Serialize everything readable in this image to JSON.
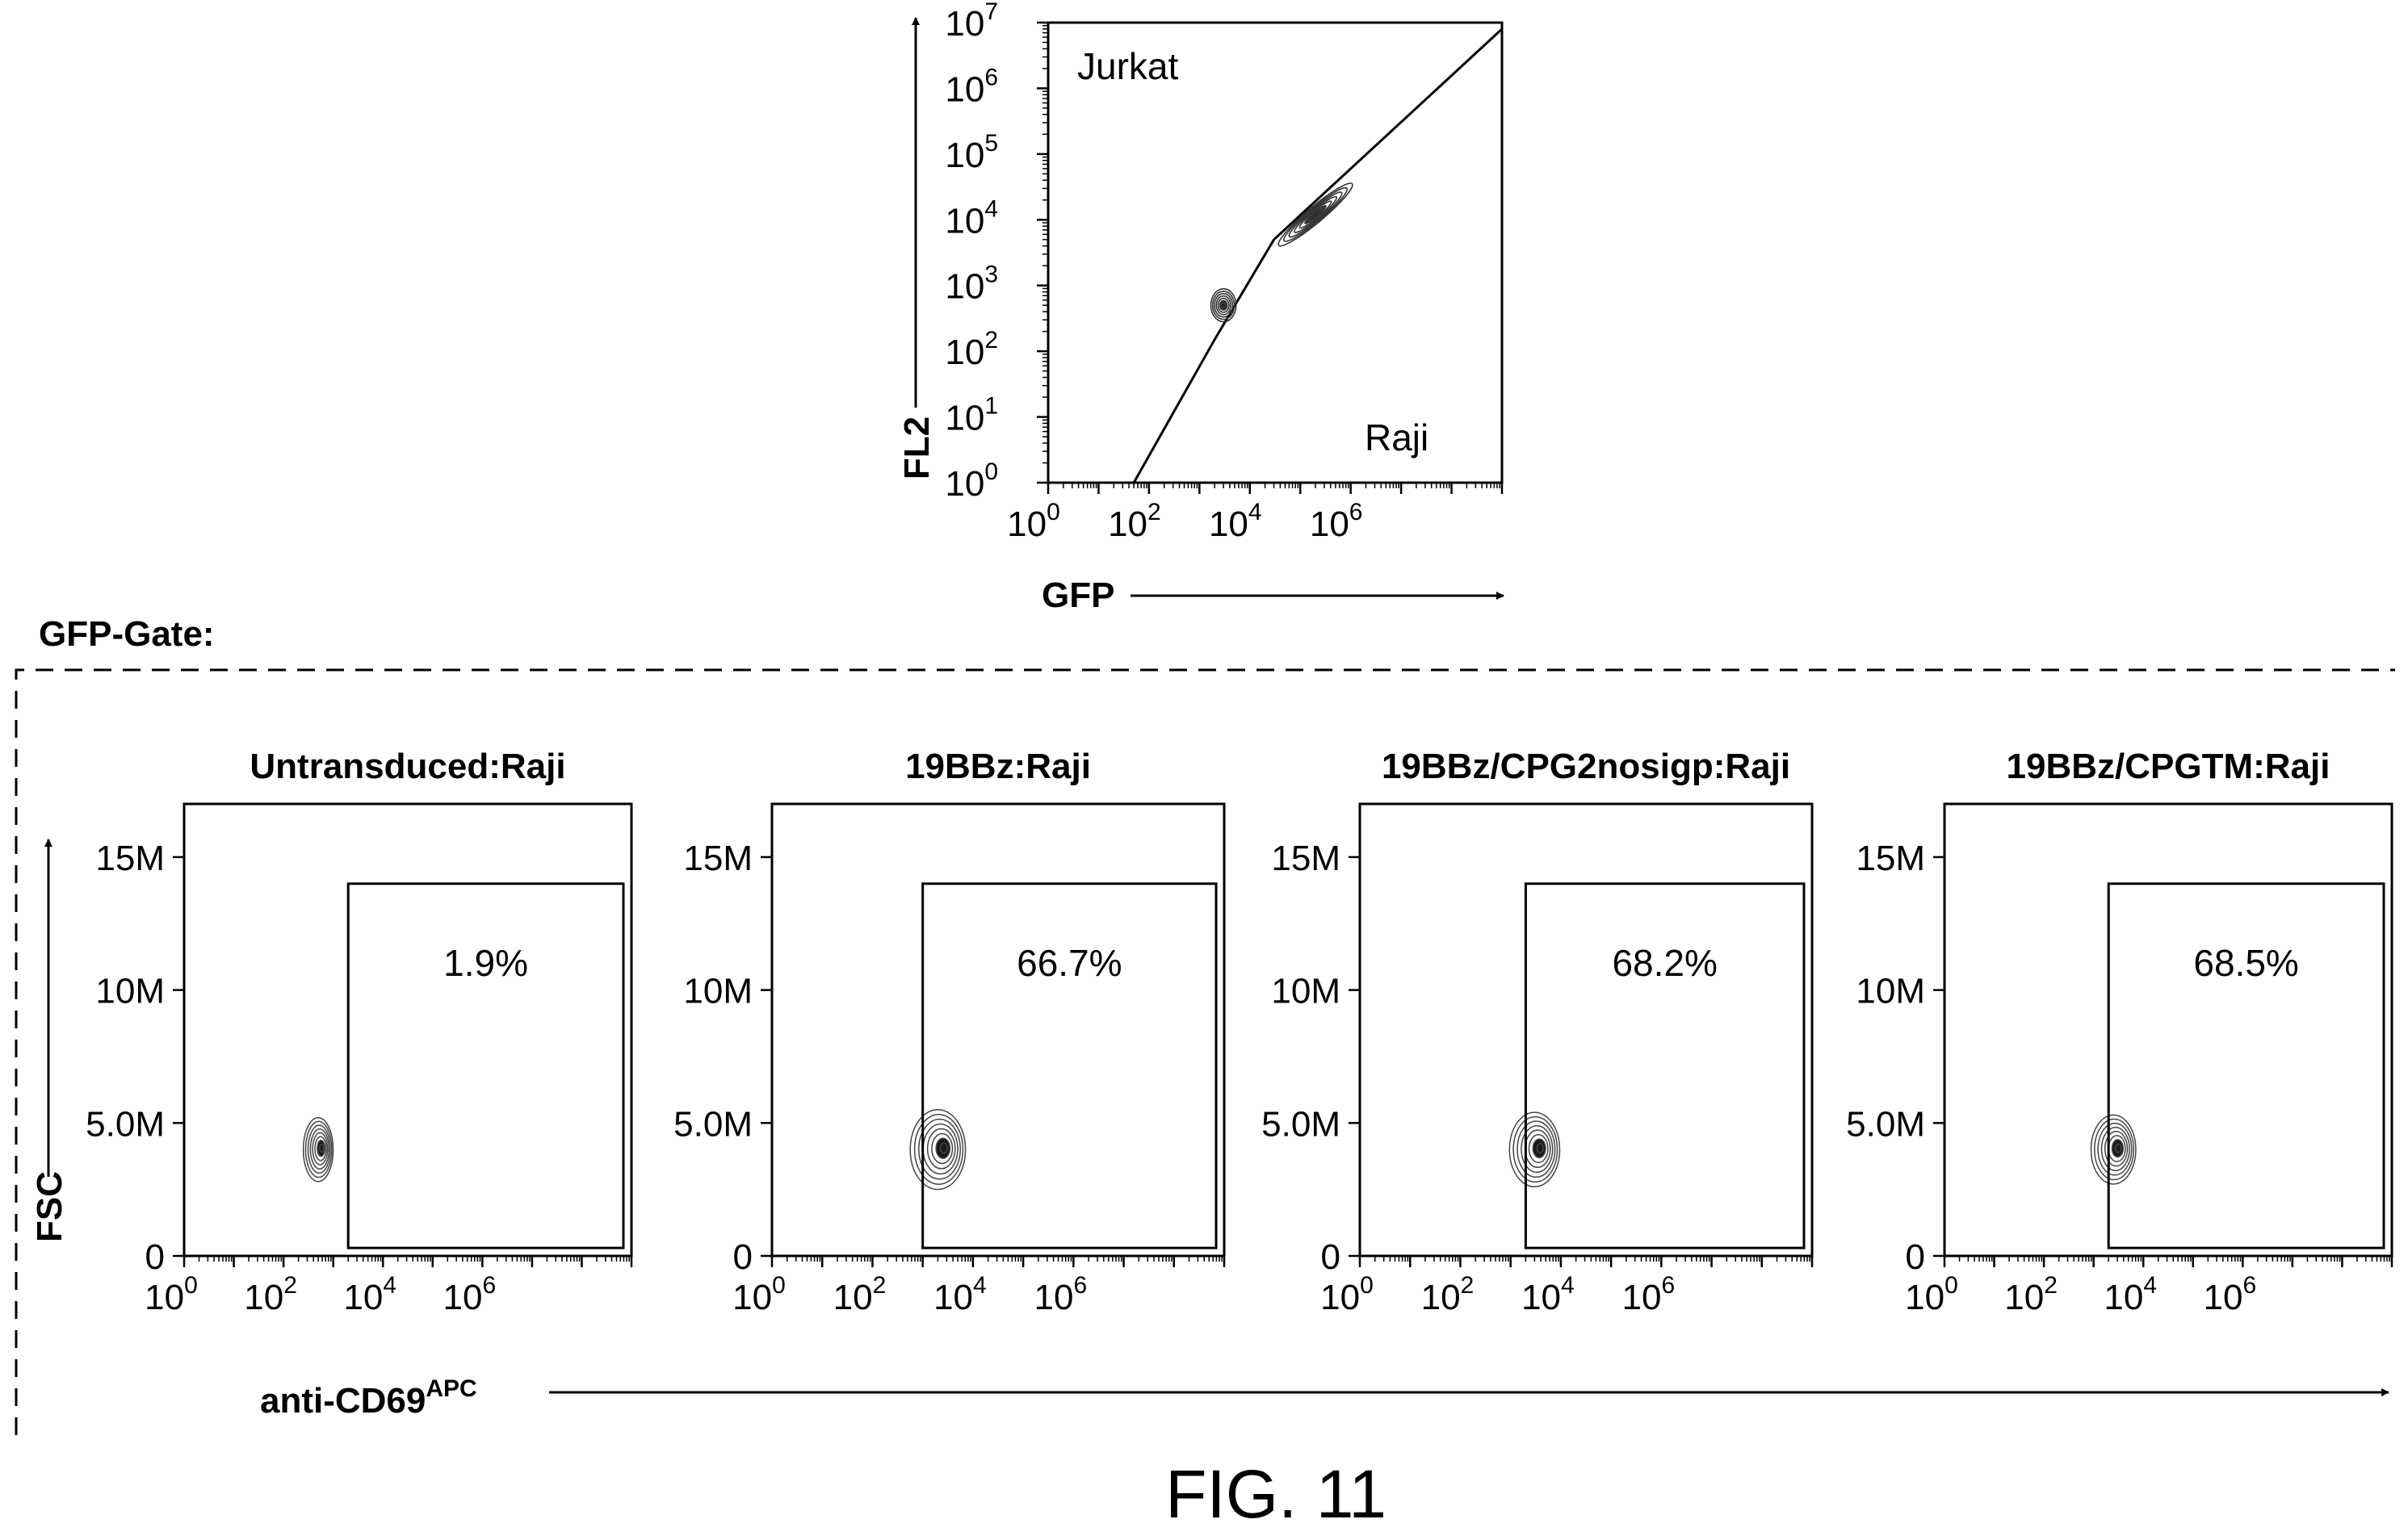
{
  "figure_label": "FIG. 11",
  "gate_label": "GFP-Gate:",
  "bottom_xlabel": "anti-CD69",
  "bottom_xlabel_sup": "APC",
  "bottom_ylabel": "FSC",
  "colors": {
    "ink": "#000000",
    "density": "#333333",
    "background": "#ffffff"
  },
  "chart_data": [
    {
      "type": "scatter",
      "subtype": "flow-cytometry-density",
      "title": "",
      "xlabel": "GFP",
      "ylabel": "FL2",
      "xscale": "log",
      "yscale": "log",
      "xlim": [
        1,
        1000000000
      ],
      "ylim": [
        1,
        10000000
      ],
      "x_ticks": [
        {
          "base": "10",
          "exp": "0",
          "value": 1
        },
        {
          "base": "10",
          "exp": "2",
          "value": 100
        },
        {
          "base": "10",
          "exp": "4",
          "value": 10000
        },
        {
          "base": "10",
          "exp": "6",
          "value": 1000000
        }
      ],
      "y_ticks": [
        {
          "base": "10",
          "exp": "0",
          "value": 1
        },
        {
          "base": "10",
          "exp": "1",
          "value": 10
        },
        {
          "base": "10",
          "exp": "2",
          "value": 100
        },
        {
          "base": "10",
          "exp": "3",
          "value": 1000
        },
        {
          "base": "10",
          "exp": "4",
          "value": 10000
        },
        {
          "base": "10",
          "exp": "5",
          "value": 100000
        },
        {
          "base": "10",
          "exp": "6",
          "value": 1000000
        },
        {
          "base": "10",
          "exp": "7",
          "value": 10000000
        }
      ],
      "region_labels": [
        {
          "text": "Jurkat",
          "x": 3,
          "y": 3000000
        },
        {
          "text": "Raji",
          "x": 2000000,
          "y": 8
        }
      ],
      "gate_line": [
        [
          50,
          1
        ],
        [
          2000,
          150
        ],
        [
          30000,
          5000
        ],
        [
          1000000000,
          8000000
        ]
      ],
      "populations": [
        {
          "x": 3000,
          "y": 500,
          "log_spread_x": 0.25,
          "log_spread_y": 0.25,
          "tilt_deg": 0
        },
        {
          "x": 200000,
          "y": 12000,
          "log_spread_x": 0.95,
          "log_spread_y": 0.12,
          "tilt_deg": 40
        }
      ]
    },
    {
      "type": "scatter",
      "subtype": "flow-cytometry-density",
      "title": "Untransduced:Raji",
      "xscale": "log",
      "xlim": [
        1,
        1000000000
      ],
      "ylim": [
        0,
        17000000
      ],
      "x_ticks": [
        {
          "base": "10",
          "exp": "0",
          "value": 1
        },
        {
          "base": "10",
          "exp": "2",
          "value": 100
        },
        {
          "base": "10",
          "exp": "4",
          "value": 10000
        },
        {
          "base": "10",
          "exp": "6",
          "value": 1000000
        }
      ],
      "y_ticks": [
        {
          "label": "0",
          "value": 0
        },
        {
          "label": "5.0M",
          "value": 5000000
        },
        {
          "label": "10M",
          "value": 10000000
        },
        {
          "label": "15M",
          "value": 15000000
        }
      ],
      "gate": {
        "x_min": 2000,
        "x_max": 1000000000,
        "y_min": 300000,
        "y_max": 14000000
      },
      "gate_percent": "1.9%",
      "population": {
        "x": 500,
        "y": 4000000,
        "log_spread_x": 0.3,
        "y_spread": 1200000
      }
    },
    {
      "type": "scatter",
      "subtype": "flow-cytometry-density",
      "title": "19BBz:Raji",
      "xscale": "log",
      "xlim": [
        1,
        1000000000
      ],
      "ylim": [
        0,
        17000000
      ],
      "x_ticks": [
        {
          "base": "10",
          "exp": "0",
          "value": 1
        },
        {
          "base": "10",
          "exp": "2",
          "value": 100
        },
        {
          "base": "10",
          "exp": "4",
          "value": 10000
        },
        {
          "base": "10",
          "exp": "6",
          "value": 1000000
        }
      ],
      "y_ticks": [
        {
          "label": "0",
          "value": 0
        },
        {
          "label": "5.0M",
          "value": 5000000
        },
        {
          "label": "10M",
          "value": 10000000
        },
        {
          "label": "15M",
          "value": 15000000
        }
      ],
      "gate": {
        "x_min": 1000,
        "x_max": 1000000000,
        "y_min": 300000,
        "y_max": 14000000
      },
      "gate_percent": "66.7%",
      "population": {
        "x": 2000,
        "y": 4000000,
        "log_spread_x": 0.55,
        "y_spread": 1500000
      }
    },
    {
      "type": "scatter",
      "subtype": "flow-cytometry-density",
      "title": "19BBz/CPG2nosigp:Raji",
      "xscale": "log",
      "xlim": [
        1,
        1000000000
      ],
      "ylim": [
        0,
        17000000
      ],
      "x_ticks": [
        {
          "base": "10",
          "exp": "0",
          "value": 1
        },
        {
          "base": "10",
          "exp": "2",
          "value": 100
        },
        {
          "base": "10",
          "exp": "4",
          "value": 10000
        },
        {
          "base": "10",
          "exp": "6",
          "value": 1000000
        }
      ],
      "y_ticks": [
        {
          "label": "0",
          "value": 0
        },
        {
          "label": "5.0M",
          "value": 5000000
        },
        {
          "label": "10M",
          "value": 10000000
        },
        {
          "label": "15M",
          "value": 15000000
        }
      ],
      "gate": {
        "x_min": 2000,
        "x_max": 1000000000,
        "y_min": 300000,
        "y_max": 14000000
      },
      "gate_percent": "68.2%",
      "population": {
        "x": 3000,
        "y": 4000000,
        "log_spread_x": 0.5,
        "y_spread": 1400000
      }
    },
    {
      "type": "scatter",
      "subtype": "flow-cytometry-density",
      "title": "19BBz/CPGTM:Raji",
      "xscale": "log",
      "xlim": [
        1,
        1000000000
      ],
      "ylim": [
        0,
        17000000
      ],
      "x_ticks": [
        {
          "base": "10",
          "exp": "0",
          "value": 1
        },
        {
          "base": "10",
          "exp": "2",
          "value": 100
        },
        {
          "base": "10",
          "exp": "4",
          "value": 10000
        },
        {
          "base": "10",
          "exp": "6",
          "value": 1000000
        }
      ],
      "y_ticks": [
        {
          "label": "0",
          "value": 0
        },
        {
          "label": "5.0M",
          "value": 5000000
        },
        {
          "label": "10M",
          "value": 10000000
        },
        {
          "label": "15M",
          "value": 15000000
        }
      ],
      "gate": {
        "x_min": 2000,
        "x_max": 1000000000,
        "y_min": 300000,
        "y_max": 14000000
      },
      "gate_percent": "68.5%",
      "population": {
        "x": 2500,
        "y": 4000000,
        "log_spread_x": 0.45,
        "y_spread": 1300000
      }
    }
  ]
}
